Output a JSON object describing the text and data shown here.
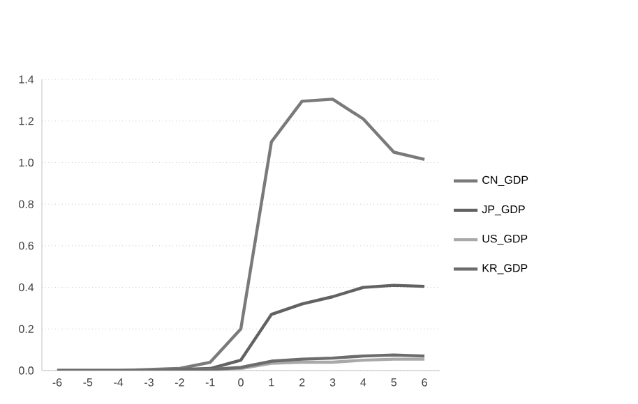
{
  "chart_data": {
    "type": "line",
    "categories": [
      "-6",
      "-5",
      "-4",
      "-3",
      "-2",
      "-1",
      "0",
      "1",
      "2",
      "3",
      "4",
      "5",
      "6"
    ],
    "series": [
      {
        "name": "CN_GDP",
        "color": "#7a7a7a",
        "values": [
          0,
          0,
          0,
          0.005,
          0.01,
          0.04,
          0.2,
          1.1,
          1.295,
          1.305,
          1.21,
          1.05,
          1.015
        ]
      },
      {
        "name": "JP_GDP",
        "color": "#626262",
        "values": [
          0,
          0,
          0,
          0,
          0.005,
          0.01,
          0.05,
          0.27,
          0.32,
          0.355,
          0.4,
          0.41,
          0.405
        ]
      },
      {
        "name": "US_GDP",
        "color": "#a9a9a9",
        "values": [
          0,
          0,
          0,
          0,
          0,
          0.005,
          0.01,
          0.035,
          0.04,
          0.04,
          0.05,
          0.055,
          0.055
        ]
      },
      {
        "name": "KR_GDP",
        "color": "#6c6c6c",
        "values": [
          0,
          0,
          0,
          0,
          0,
          0.005,
          0.015,
          0.045,
          0.055,
          0.06,
          0.07,
          0.075,
          0.07
        ]
      }
    ],
    "ylim": [
      0,
      1.4
    ],
    "yticks": [
      {
        "value": 0,
        "label": "0.0"
      },
      {
        "value": 0.2,
        "label": "0.2"
      },
      {
        "value": 0.4,
        "label": "0.4"
      },
      {
        "value": 0.6,
        "label": "0.6"
      },
      {
        "value": 0.8,
        "label": "0.8"
      },
      {
        "value": 1.0,
        "label": "1.0"
      },
      {
        "value": 1.2,
        "label": "1.2"
      },
      {
        "value": 1.4,
        "label": "1.4"
      }
    ],
    "grid": "y",
    "legend": "right",
    "marker": "none",
    "line_style": "solid"
  }
}
